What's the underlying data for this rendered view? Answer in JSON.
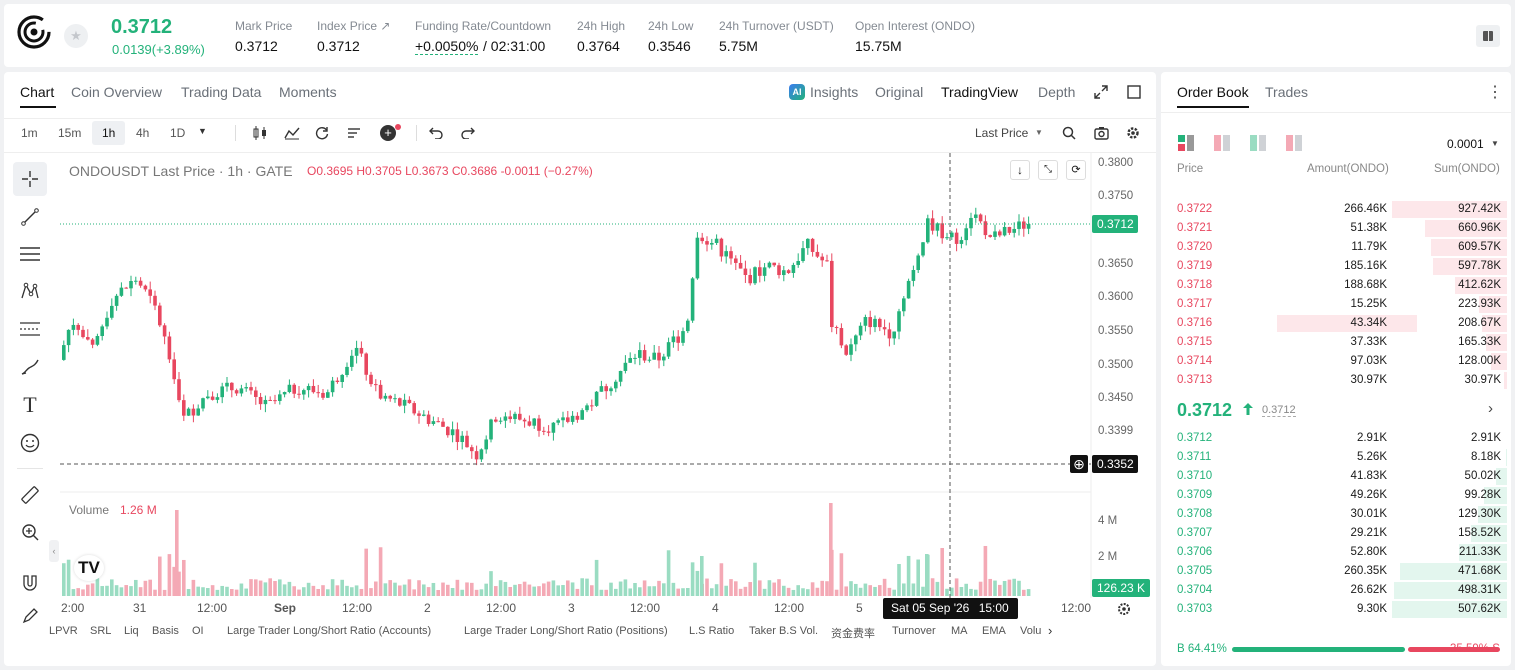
{
  "header": {
    "last_price": "0.3712",
    "change": "0.0139(+3.89%)",
    "stats": [
      {
        "label": "Mark Price",
        "value": "0.3712"
      },
      {
        "label": "Index Price ↗",
        "value": "0.3712"
      },
      {
        "label": "Funding Rate/Countdown",
        "value": "+0.0050%",
        "extra": "/ 02:31:00"
      },
      {
        "label": "24h High",
        "value": "0.3764"
      },
      {
        "label": "24h Low",
        "value": "0.3546"
      },
      {
        "label": "24h Turnover (USDT)",
        "value": "5.75M"
      },
      {
        "label": "Open Interest (ONDO)",
        "value": "15.75M"
      }
    ]
  },
  "chart_tabs": [
    "Chart",
    "Coin Overview",
    "Trading Data",
    "Moments"
  ],
  "view_tabs": [
    "Insights",
    "Original",
    "TradingView",
    "Depth"
  ],
  "timeframes": [
    "1m",
    "15m",
    "1h",
    "4h",
    "1D"
  ],
  "price_type": "Last Price",
  "legend": {
    "symbol": "ONDOUSDT Last Price · 1h · GATE",
    "o": "O0.3695",
    "h": "H0.3705",
    "l": "L0.3673",
    "c": "C0.3686",
    "chg": "-0.0011 (−0.27%)"
  },
  "volume": {
    "label": "Volume",
    "value": "1.26 M"
  },
  "price_axis": [
    "0.3800",
    "0.3750",
    "0.3700",
    "0.3650",
    "0.3600",
    "0.3550",
    "0.3500",
    "0.3450",
    "0.3399",
    "0.3350"
  ],
  "current_price_tag": "0.3712",
  "cursor_price_tag": "0.3352",
  "volume_axis": [
    "4 M",
    "2 M"
  ],
  "volume_tag": "126.23 K",
  "time_axis": [
    "2:00",
    "31",
    "12:00",
    "Sep",
    "12:00",
    "2",
    "12:00",
    "3",
    "12:00",
    "4",
    "12:00",
    "5",
    "12:00"
  ],
  "cursor_time": "Sat 05 Sep '26",
  "cursor_hour": "15:00",
  "indicators": [
    "LPVR",
    "SRL",
    "Liq",
    "Basis",
    "OI",
    "Large Trader Long/Short Ratio (Accounts)",
    "Large Trader Long/Short Ratio (Positions)",
    "L.S Ratio",
    "Taker B.S Vol.",
    "资金费率",
    "Turnover",
    "MA",
    "EMA",
    "Volu"
  ],
  "orderbook": {
    "tabs": [
      "Order Book",
      "Trades"
    ],
    "precision": "0.0001",
    "headers": [
      "Price",
      "Amount(ONDO)",
      "Sum(ONDO)"
    ],
    "asks": [
      {
        "p": "0.3722",
        "a": "266.46K",
        "s": "927.42K",
        "sf": 1.0,
        "af": 0
      },
      {
        "p": "0.3721",
        "a": "51.38K",
        "s": "660.96K",
        "sf": 0.71,
        "af": 0
      },
      {
        "p": "0.3720",
        "a": "11.79K",
        "s": "609.57K",
        "sf": 0.66,
        "af": 0
      },
      {
        "p": "0.3719",
        "a": "185.16K",
        "s": "597.78K",
        "sf": 0.64,
        "af": 0
      },
      {
        "p": "0.3718",
        "a": "188.68K",
        "s": "412.62K",
        "sf": 0.45,
        "af": 0
      },
      {
        "p": "0.3717",
        "a": "15.25K",
        "s": "223.93K",
        "sf": 0.24,
        "af": 0
      },
      {
        "p": "0.3716",
        "a": "43.34K",
        "s": "208.67K",
        "sf": 0.22,
        "af": 0.5
      },
      {
        "p": "0.3715",
        "a": "37.33K",
        "s": "165.33K",
        "sf": 0.18,
        "af": 0
      },
      {
        "p": "0.3714",
        "a": "97.03K",
        "s": "128.00K",
        "sf": 0.14,
        "af": 0
      },
      {
        "p": "0.3713",
        "a": "30.97K",
        "s": "30.97K",
        "sf": 0.03,
        "af": 0
      }
    ],
    "mid_price": "0.3712",
    "mid_mark": "0.3712",
    "bids": [
      {
        "p": "0.3712",
        "a": "2.91K",
        "s": "2.91K",
        "sf": 0.0,
        "af": 0
      },
      {
        "p": "0.3711",
        "a": "5.26K",
        "s": "8.18K",
        "sf": 0.01,
        "af": 0
      },
      {
        "p": "0.3710",
        "a": "41.83K",
        "s": "50.02K",
        "sf": 0.1,
        "af": 0
      },
      {
        "p": "0.3709",
        "a": "49.26K",
        "s": "99.28K",
        "sf": 0.2,
        "af": 0
      },
      {
        "p": "0.3708",
        "a": "30.01K",
        "s": "129.30K",
        "sf": 0.25,
        "af": 0
      },
      {
        "p": "0.3707",
        "a": "29.21K",
        "s": "158.52K",
        "sf": 0.31,
        "af": 0
      },
      {
        "p": "0.3706",
        "a": "52.80K",
        "s": "211.33K",
        "sf": 0.42,
        "af": 0
      },
      {
        "p": "0.3705",
        "a": "260.35K",
        "s": "471.68K",
        "sf": 0.93,
        "af": 0
      },
      {
        "p": "0.3704",
        "a": "26.62K",
        "s": "498.31K",
        "sf": 0.98,
        "af": 0
      },
      {
        "p": "0.3703",
        "a": "9.30K",
        "s": "507.62K",
        "sf": 1.0,
        "af": 0
      }
    ],
    "buy_pct": "B 64.41%",
    "sell_pct": "35.59% S",
    "buy_ratio": 0.6441
  },
  "colors": {
    "up": "#23b27a",
    "down": "#e8475f",
    "accent": "#23b27a"
  }
}
